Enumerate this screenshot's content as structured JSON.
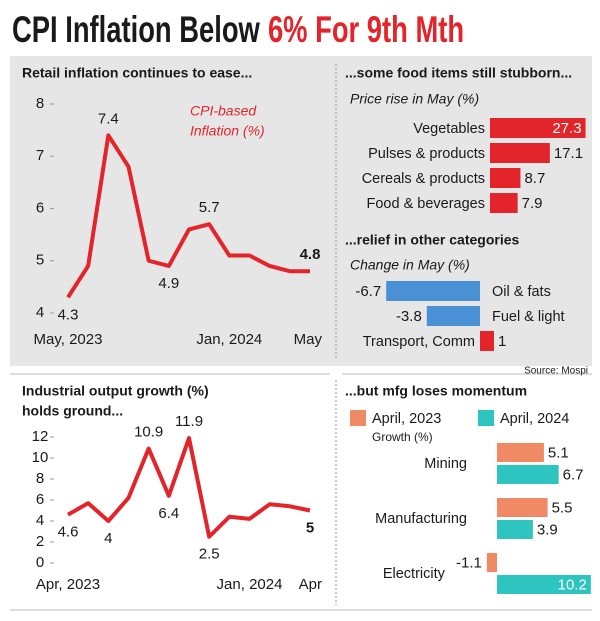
{
  "header": {
    "title": "CPI Inflation Below",
    "title_highlight": "6% For 9th Mth"
  },
  "source": "Source: Mospi",
  "chart_data": [
    {
      "type": "line",
      "title": "Retail inflation continues to ease...",
      "annotation": [
        "CPI-based",
        "Inflation (%)"
      ],
      "categories": [
        "May, 2023",
        null,
        null,
        null,
        null,
        null,
        null,
        null,
        "Jan, 2024",
        null,
        null,
        null,
        "May"
      ],
      "values": [
        4.3,
        4.9,
        7.4,
        6.8,
        5.0,
        4.9,
        5.6,
        5.7,
        5.1,
        5.1,
        4.9,
        4.8,
        4.8
      ],
      "value_labels": [
        "4.3",
        null,
        "7.4",
        null,
        null,
        "4.9",
        null,
        "5.7",
        null,
        null,
        null,
        null,
        "4.8"
      ],
      "color": "#e3242b",
      "ylim": [
        4,
        8
      ],
      "yticks": [
        4,
        5,
        6,
        7,
        8
      ]
    },
    {
      "type": "hbar",
      "title": "...some food items still stubborn...",
      "subtitle": "Price rise in May (%)",
      "categories": [
        "Vegetables",
        "Pulses & products",
        "Cereals & products",
        "Food & beverages"
      ],
      "values": [
        27.3,
        17.1,
        8.7,
        7.9
      ],
      "color": "#e3242b"
    },
    {
      "type": "hbar",
      "title": "...relief in other categories",
      "subtitle": "Change in May (%)",
      "categories": [
        "Oil & fats",
        "Fuel & light",
        "Transport, Comm"
      ],
      "values": [
        -6.7,
        -3.8,
        1
      ],
      "color": "#e3242b",
      "negative_color": "#4a90d4"
    },
    {
      "type": "line",
      "title": [
        "Industrial output growth (%)",
        "holds ground..."
      ],
      "categories": [
        "Apr, 2023",
        null,
        null,
        null,
        null,
        null,
        null,
        null,
        null,
        "Jan, 2024",
        null,
        null,
        "Apr"
      ],
      "values": [
        4.6,
        5.7,
        4.0,
        6.2,
        10.9,
        6.4,
        11.9,
        2.5,
        4.4,
        4.2,
        5.6,
        5.4,
        5.0
      ],
      "value_labels": [
        "4.6",
        null,
        "4",
        null,
        "10.9",
        "6.4",
        "11.9",
        "2.5",
        null,
        null,
        null,
        null,
        "5"
      ],
      "color": "#e3242b",
      "ylim": [
        0,
        12
      ],
      "yticks": [
        0,
        2,
        4,
        6,
        8,
        10,
        12
      ]
    },
    {
      "type": "grouped-hbar",
      "title": "...but mfg loses momentum",
      "subtitle": "Growth (%)",
      "categories": [
        "Mining",
        "Manufacturing",
        "Electricity"
      ],
      "series": [
        {
          "name": "April, 2023",
          "color": "#f08a64",
          "values": [
            5.1,
            5.5,
            -1.1
          ]
        },
        {
          "name": "April, 2024",
          "color": "#2ec4bf",
          "values": [
            6.7,
            3.9,
            10.2
          ]
        }
      ]
    }
  ]
}
